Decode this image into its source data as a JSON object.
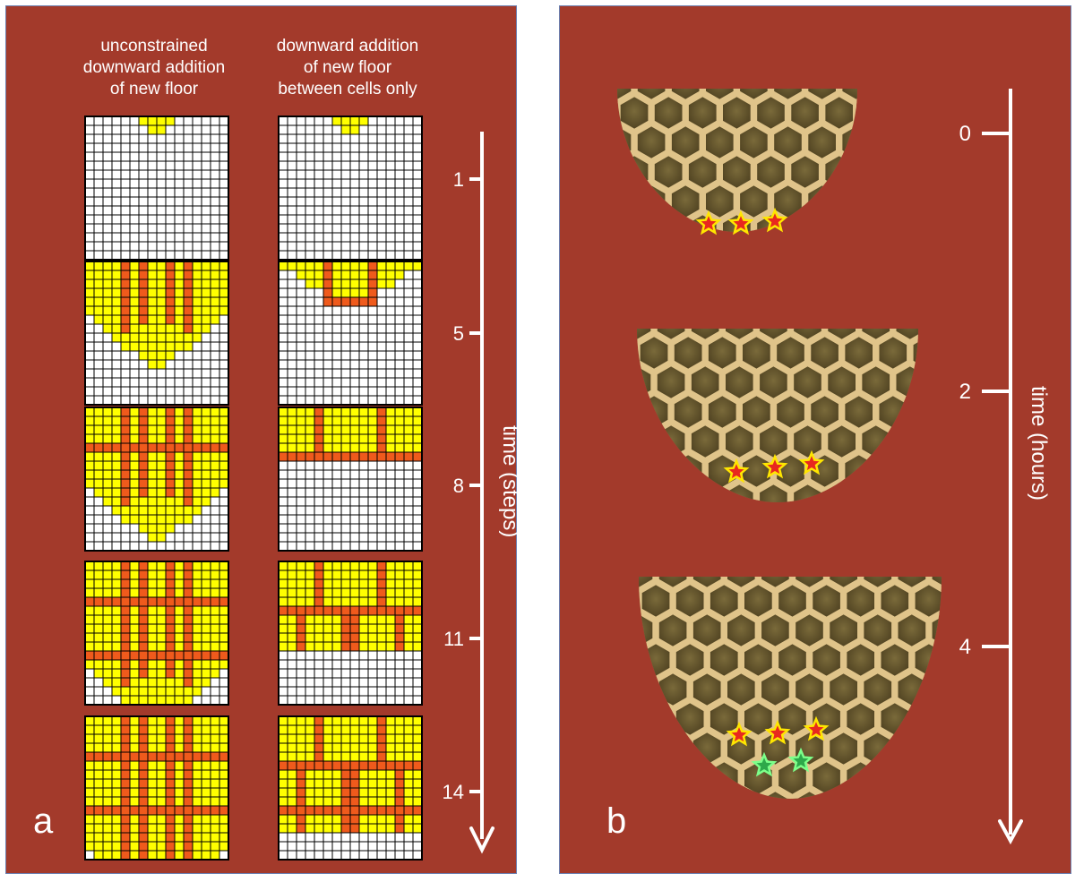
{
  "panel_a": {
    "letter": "a",
    "col1_title": "unconstrained\ndownward addition\nof new floor",
    "col2_title": "downward addition\nof new floor\nbetween cells only",
    "axis_label": "time (steps)",
    "ticks": [
      "1",
      "5",
      "8",
      "11",
      "14"
    ],
    "colors": {
      "wax": "#ffff00",
      "wall": "#ef5a1c",
      "empty": "#ffffff",
      "grid": "#000000"
    }
  },
  "panel_b": {
    "letter": "b",
    "axis_label": "time (hours)",
    "ticks": [
      "0",
      "2",
      "4"
    ],
    "star_colors": {
      "old": "#e8281f",
      "old_outline": "#ffe600",
      "new": "#2ea84a",
      "new_outline": "#7dff8a"
    }
  }
}
